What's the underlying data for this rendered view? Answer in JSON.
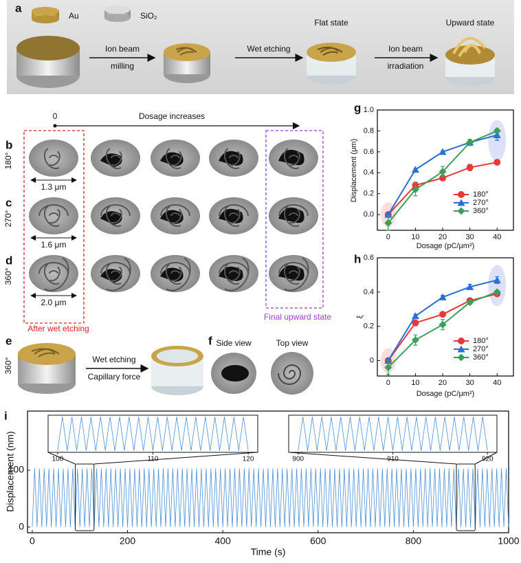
{
  "panels": {
    "a": {
      "label": "a",
      "legend": [
        "Au",
        "SiO₂"
      ],
      "step1": [
        "Ion beam",
        "milling"
      ],
      "step2": "Wet etching",
      "state1": "Flat state",
      "step3": [
        "Ion beam",
        "irradiation"
      ],
      "state2": "Upward state"
    },
    "bcd": {
      "start": "0",
      "arrow": "Dosage increases",
      "rows": [
        {
          "label": "b",
          "angle": "180°",
          "size": "1.3 μm"
        },
        {
          "label": "c",
          "angle": "270°",
          "size": "1.6 μm"
        },
        {
          "label": "d",
          "angle": "360°",
          "size": "2.0 μm"
        }
      ],
      "left_note": "After wet etching",
      "right_note": "Final upward state"
    },
    "e": {
      "label": "e",
      "angle": "360°",
      "step": [
        "Wet etching",
        "Capillary force"
      ]
    },
    "f": {
      "label": "f",
      "views": [
        "Side view",
        "Top view"
      ]
    }
  },
  "chart_data": [
    {
      "type": "line",
      "panel_label": "g",
      "xlabel": "Dosage (pC/μm²)",
      "ylabel": "Displacement (μm)",
      "x": [
        0,
        10,
        20,
        30,
        40
      ],
      "xlim": [
        -4,
        46
      ],
      "xticks": [
        0,
        10,
        20,
        30,
        40
      ],
      "ylim": [
        -0.15,
        1.0
      ],
      "yticks": [
        {
          "value": 0,
          "label": "0.0"
        },
        0.2,
        0.4,
        0.6,
        0.8,
        {
          "value": 1,
          "label": "1.0"
        }
      ],
      "legend": "lower right",
      "series": [
        {
          "name": "180°",
          "color": "#e8393a",
          "marker": "circle",
          "values": [
            0.0,
            0.28,
            0.35,
            0.45,
            0.5
          ],
          "errors": [
            0.02,
            0.03,
            0.02,
            0.03,
            0.02
          ]
        },
        {
          "name": "270°",
          "color": "#2a6fd6",
          "marker": "triangle",
          "values": [
            0.0,
            0.43,
            0.6,
            0.69,
            0.76
          ],
          "errors": [
            0.02,
            0.01,
            0.01,
            0.02,
            0.05
          ]
        },
        {
          "name": "360°",
          "color": "#3aa059",
          "marker": "diamond",
          "values": [
            -0.08,
            0.24,
            0.41,
            0.69,
            0.8
          ],
          "errors": [
            0.07,
            0.06,
            0.05,
            0.03,
            0.02
          ]
        }
      ]
    },
    {
      "type": "line",
      "panel_label": "h",
      "xlabel": "Dosage (pC/μm²)",
      "ylabel": "ξ",
      "x": [
        0,
        10,
        20,
        30,
        40
      ],
      "xlim": [
        -4,
        46
      ],
      "xticks": [
        0,
        10,
        20,
        30,
        40
      ],
      "ylim": [
        -0.09,
        0.6
      ],
      "yticks": [
        0,
        0.2,
        0.4,
        0.6
      ],
      "legend": "lower right",
      "series": [
        {
          "name": "180°",
          "color": "#e8393a",
          "marker": "circle",
          "values": [
            0.0,
            0.22,
            0.27,
            0.35,
            0.39
          ],
          "errors": [
            0.01,
            0.01,
            0.01,
            0.01,
            0.01
          ]
        },
        {
          "name": "270°",
          "color": "#2a6fd6",
          "marker": "triangle",
          "values": [
            0.0,
            0.26,
            0.37,
            0.43,
            0.47
          ],
          "errors": [
            0.01,
            0.01,
            0.01,
            0.015,
            0.02
          ]
        },
        {
          "name": "360°",
          "color": "#3aa059",
          "marker": "diamond",
          "values": [
            -0.04,
            0.12,
            0.21,
            0.34,
            0.4
          ],
          "errors": [
            0.04,
            0.03,
            0.03,
            0.01,
            0.01
          ]
        }
      ]
    },
    {
      "type": "line",
      "panel_label": "i",
      "xlabel": "Time (s)",
      "ylabel": "Displacement (nm)",
      "xlim": [
        -10,
        1000
      ],
      "xticks": [
        0,
        200,
        400,
        600,
        800,
        1000
      ],
      "ylim": [
        -10,
        204
      ],
      "yticks": [
        0,
        100
      ],
      "x": [
        0,
        5,
        10,
        15,
        20,
        25,
        30,
        35,
        40,
        45,
        50,
        55,
        60,
        65,
        70,
        75,
        80,
        85,
        90,
        95,
        100,
        105,
        110,
        115,
        120,
        125,
        130,
        135,
        140,
        145,
        150,
        155,
        160,
        165,
        170,
        175,
        180,
        185,
        190,
        195,
        200,
        205,
        210,
        215,
        220,
        225,
        230,
        235,
        240,
        245,
        250,
        255,
        260,
        265,
        270,
        275,
        280,
        285,
        290,
        295,
        300,
        305,
        310,
        315,
        320,
        325,
        330,
        335,
        340,
        345,
        350,
        355,
        360,
        365,
        370,
        375,
        380,
        385,
        390,
        395,
        400,
        405,
        410,
        415,
        420,
        425,
        430,
        435,
        440,
        445,
        450,
        455,
        460,
        465,
        470,
        475,
        480,
        485,
        490,
        495,
        500,
        505,
        510,
        515,
        520,
        525,
        530,
        535,
        540,
        545,
        550,
        555,
        560,
        565,
        570,
        575,
        580,
        585,
        590,
        595,
        600,
        605,
        610,
        615,
        620,
        625,
        630,
        635,
        640,
        645,
        650,
        655,
        660,
        665,
        670,
        675,
        680,
        685,
        690,
        695,
        700,
        705,
        710,
        715,
        720,
        725,
        730,
        735,
        740,
        745,
        750,
        755,
        760,
        765,
        770,
        775,
        780,
        785,
        790,
        795,
        800,
        805,
        810,
        815,
        820,
        825,
        830,
        835,
        840,
        845,
        850,
        855,
        860,
        865,
        870,
        875,
        880,
        885,
        890,
        895,
        900,
        905,
        910,
        915,
        920,
        925,
        930,
        935,
        940,
        945,
        950,
        955,
        960,
        965,
        970,
        975,
        980,
        985,
        990,
        995,
        1000
      ],
      "series": [
        {
          "color": "#4a8fd8",
          "values": [
            0,
            103,
            0,
            103,
            0,
            103,
            0,
            103,
            0,
            103,
            0,
            103,
            0,
            103,
            0,
            103,
            0,
            103,
            0,
            103,
            0,
            103,
            0,
            103,
            0,
            103,
            0,
            103,
            0,
            103,
            0,
            103,
            0,
            103,
            0,
            103,
            0,
            103,
            0,
            103,
            0,
            103,
            0,
            103,
            0,
            103,
            0,
            103,
            0,
            103,
            0,
            103,
            0,
            103,
            0,
            103,
            0,
            103,
            0,
            103,
            0,
            103,
            0,
            103,
            0,
            103,
            0,
            103,
            0,
            103,
            0,
            103,
            0,
            103,
            0,
            103,
            0,
            103,
            0,
            103,
            0,
            103,
            0,
            103,
            0,
            103,
            0,
            103,
            0,
            103,
            0,
            103,
            0,
            103,
            0,
            103,
            0,
            103,
            0,
            103,
            0,
            103,
            0,
            103,
            0,
            103,
            0,
            103,
            0,
            103,
            0,
            103,
            0,
            103,
            0,
            103,
            0,
            103,
            0,
            103,
            0,
            103,
            0,
            103,
            0,
            103,
            0,
            103,
            0,
            103,
            0,
            103,
            0,
            103,
            0,
            103,
            0,
            103,
            0,
            103,
            0,
            103,
            0,
            103,
            0,
            103,
            0,
            103,
            0,
            103,
            0,
            103,
            0,
            103,
            0,
            103,
            0,
            103,
            0,
            103,
            0,
            103,
            0,
            103,
            0,
            103,
            0,
            103,
            0,
            103,
            0,
            103,
            0,
            103,
            0,
            103,
            0,
            103,
            0,
            103,
            0,
            103,
            0,
            103,
            0,
            103,
            0,
            103,
            0,
            103,
            0,
            103,
            0,
            103,
            0,
            103,
            0,
            103,
            0,
            103,
            0
          ]
        }
      ]
    },
    {
      "type": "line",
      "xlim": [
        99,
        121
      ],
      "xticks": [
        100,
        110,
        120
      ],
      "ylim": [
        -5,
        105
      ],
      "x": [
        100,
        100.5,
        101,
        101.5,
        102,
        102.5,
        103,
        103.5,
        104,
        104.5,
        105,
        105.5,
        106,
        106.5,
        107,
        107.5,
        108,
        108.5,
        109,
        109.5,
        110,
        110.5,
        111,
        111.5,
        112,
        112.5,
        113,
        113.5,
        114,
        114.5,
        115,
        115.5,
        116,
        116.5,
        117,
        117.5,
        118,
        118.5,
        119,
        119.5,
        120
      ],
      "series": [
        {
          "color": "#4a8fd8",
          "values": [
            0,
            100,
            0,
            100,
            0,
            100,
            0,
            100,
            0,
            100,
            0,
            100,
            0,
            100,
            0,
            100,
            0,
            100,
            0,
            100,
            0,
            100,
            0,
            100,
            0,
            100,
            0,
            100,
            0,
            100,
            0,
            100,
            0,
            100,
            0,
            100,
            0,
            100,
            0,
            100,
            0
          ]
        }
      ]
    },
    {
      "type": "line",
      "xlim": [
        899,
        921
      ],
      "xticks": [
        900,
        910,
        920
      ],
      "ylim": [
        -5,
        105
      ],
      "x": [
        900,
        900.5,
        901,
        901.5,
        902,
        902.5,
        903,
        903.5,
        904,
        904.5,
        905,
        905.5,
        906,
        906.5,
        907,
        907.5,
        908,
        908.5,
        909,
        909.5,
        910,
        910.5,
        911,
        911.5,
        912,
        912.5,
        913,
        913.5,
        914,
        914.5,
        915,
        915.5,
        916,
        916.5,
        917,
        917.5,
        918,
        918.5,
        919,
        919.5,
        920
      ],
      "series": [
        {
          "color": "#4a8fd8",
          "values": [
            0,
            100,
            0,
            100,
            0,
            100,
            0,
            100,
            0,
            100,
            0,
            100,
            0,
            100,
            0,
            100,
            0,
            100,
            0,
            100,
            0,
            100,
            0,
            100,
            0,
            100,
            0,
            100,
            0,
            100,
            0,
            100,
            0,
            100,
            0,
            100,
            0,
            100,
            0,
            100,
            0
          ]
        }
      ]
    }
  ]
}
